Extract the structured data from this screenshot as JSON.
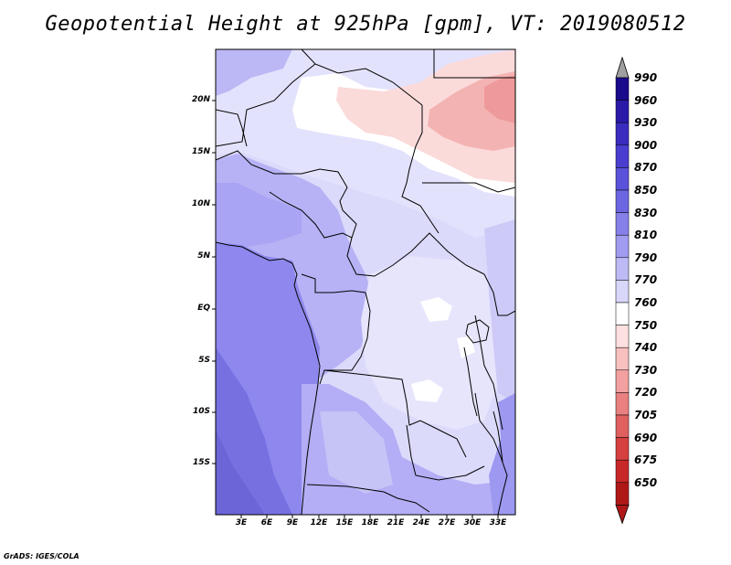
{
  "title": "Geopotential Height at 925hPa [gpm], VT: 2019080512",
  "credit": "GrADS: IGES/COLA",
  "map": {
    "variable": "Geopotential Height",
    "level": "925hPa",
    "units": "gpm",
    "valid_time": "2019080512",
    "lat_labels": [
      "20N",
      "15N",
      "10N",
      "5N",
      "EQ",
      "5S",
      "10S",
      "15S"
    ],
    "lon_labels": [
      "3E",
      "6E",
      "9E",
      "12E",
      "15E",
      "18E",
      "21E",
      "24E",
      "27E",
      "30E",
      "33E"
    ]
  },
  "colorbar": {
    "labels": [
      "990",
      "960",
      "930",
      "900",
      "870",
      "850",
      "830",
      "810",
      "790",
      "770",
      "760",
      "750",
      "740",
      "730",
      "720",
      "705",
      "690",
      "675",
      "650"
    ],
    "colors": [
      "#1a0a8c",
      "#2a1aa8",
      "#3a2cbf",
      "#4a3ed0",
      "#5a52db",
      "#6c66e2",
      "#8680ea",
      "#a09cf1",
      "#bdbaf6",
      "#d8d7fa",
      "#ffffff",
      "#fde0e0",
      "#f9c0c0",
      "#f3a0a0",
      "#ea8080",
      "#e06060",
      "#d64040",
      "#c82828",
      "#b01818"
    ],
    "top_arrow_color": "#a0a0a0",
    "bottom_arrow_color": "#b01818"
  },
  "colors": {
    "ocean_deep": "#6f6ad9",
    "ocean": "#8a84ee",
    "land_mid": "#b0acf4",
    "land_light": "#d6d4fa",
    "land_pale": "#e8e7fc",
    "white_zone": "#ffffff",
    "sahara_pink": "#fbdada",
    "sahara_red": "#f2a4a4"
  }
}
